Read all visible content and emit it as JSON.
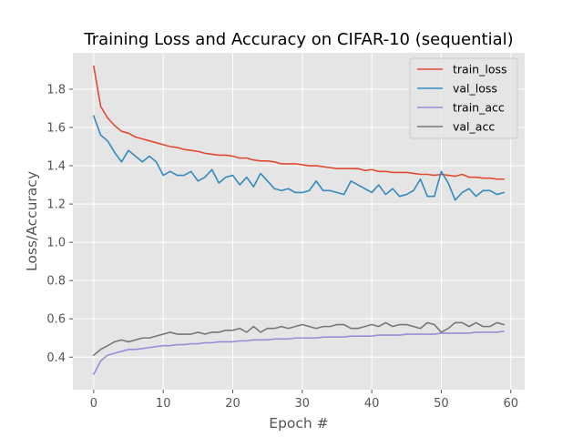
{
  "chart_data": {
    "type": "line",
    "title": "Training Loss and Accuracy on CIFAR-10 (sequential)",
    "xlabel": "Epoch #",
    "ylabel": "Loss/Accuracy",
    "xlim": [
      -3,
      62
    ],
    "ylim": [
      0.23,
      1.99
    ],
    "xticks": [
      0,
      10,
      20,
      30,
      40,
      50,
      60
    ],
    "yticks": [
      0.4,
      0.6,
      0.8,
      1.0,
      1.2,
      1.4,
      1.6,
      1.8
    ],
    "ytick_labels": [
      "0.4",
      "0.6",
      "0.8",
      "1.0",
      "1.2",
      "1.4",
      "1.6",
      "1.8"
    ],
    "grid": true,
    "legend_position": "top-right",
    "style": "ggplot",
    "x": [
      0,
      1,
      2,
      3,
      4,
      5,
      6,
      7,
      8,
      9,
      10,
      11,
      12,
      13,
      14,
      15,
      16,
      17,
      18,
      19,
      20,
      21,
      22,
      23,
      24,
      25,
      26,
      27,
      28,
      29,
      30,
      31,
      32,
      33,
      34,
      35,
      36,
      37,
      38,
      39,
      40,
      41,
      42,
      43,
      44,
      45,
      46,
      47,
      48,
      49,
      50,
      51,
      52,
      53,
      54,
      55,
      56,
      57,
      58,
      59
    ],
    "series": [
      {
        "name": "train_loss",
        "color": "#e24a33",
        "values": [
          1.92,
          1.71,
          1.65,
          1.61,
          1.58,
          1.57,
          1.55,
          1.54,
          1.53,
          1.52,
          1.51,
          1.5,
          1.495,
          1.485,
          1.48,
          1.475,
          1.465,
          1.46,
          1.455,
          1.455,
          1.45,
          1.44,
          1.44,
          1.43,
          1.425,
          1.425,
          1.42,
          1.41,
          1.41,
          1.41,
          1.405,
          1.4,
          1.4,
          1.395,
          1.39,
          1.385,
          1.385,
          1.385,
          1.385,
          1.375,
          1.38,
          1.37,
          1.37,
          1.365,
          1.365,
          1.365,
          1.36,
          1.355,
          1.355,
          1.35,
          1.355,
          1.35,
          1.345,
          1.355,
          1.34,
          1.34,
          1.335,
          1.335,
          1.33,
          1.33
        ]
      },
      {
        "name": "val_loss",
        "color": "#348abd",
        "values": [
          1.66,
          1.56,
          1.53,
          1.47,
          1.42,
          1.48,
          1.45,
          1.42,
          1.45,
          1.42,
          1.35,
          1.37,
          1.35,
          1.35,
          1.37,
          1.32,
          1.34,
          1.38,
          1.31,
          1.34,
          1.35,
          1.3,
          1.34,
          1.29,
          1.36,
          1.32,
          1.28,
          1.27,
          1.28,
          1.26,
          1.26,
          1.27,
          1.32,
          1.27,
          1.27,
          1.26,
          1.25,
          1.32,
          1.3,
          1.28,
          1.26,
          1.3,
          1.25,
          1.28,
          1.24,
          1.25,
          1.27,
          1.33,
          1.24,
          1.24,
          1.37,
          1.31,
          1.22,
          1.26,
          1.28,
          1.24,
          1.27,
          1.27,
          1.25,
          1.26
        ]
      },
      {
        "name": "train_acc",
        "color": "#988ed5",
        "values": [
          0.31,
          0.38,
          0.41,
          0.42,
          0.43,
          0.44,
          0.44,
          0.445,
          0.45,
          0.455,
          0.46,
          0.46,
          0.465,
          0.465,
          0.47,
          0.47,
          0.475,
          0.475,
          0.48,
          0.48,
          0.48,
          0.485,
          0.485,
          0.49,
          0.49,
          0.49,
          0.495,
          0.495,
          0.495,
          0.5,
          0.5,
          0.5,
          0.5,
          0.505,
          0.505,
          0.505,
          0.505,
          0.51,
          0.51,
          0.51,
          0.51,
          0.515,
          0.515,
          0.515,
          0.515,
          0.52,
          0.52,
          0.52,
          0.52,
          0.52,
          0.525,
          0.525,
          0.525,
          0.525,
          0.525,
          0.53,
          0.53,
          0.53,
          0.53,
          0.535
        ]
      },
      {
        "name": "val_acc",
        "color": "#777777",
        "values": [
          0.41,
          0.44,
          0.46,
          0.48,
          0.49,
          0.48,
          0.49,
          0.5,
          0.5,
          0.51,
          0.52,
          0.53,
          0.52,
          0.52,
          0.52,
          0.53,
          0.52,
          0.53,
          0.53,
          0.54,
          0.54,
          0.55,
          0.53,
          0.56,
          0.53,
          0.55,
          0.55,
          0.56,
          0.55,
          0.56,
          0.57,
          0.56,
          0.55,
          0.56,
          0.56,
          0.57,
          0.57,
          0.55,
          0.55,
          0.56,
          0.57,
          0.56,
          0.58,
          0.56,
          0.57,
          0.57,
          0.56,
          0.55,
          0.58,
          0.57,
          0.53,
          0.55,
          0.58,
          0.58,
          0.56,
          0.58,
          0.56,
          0.56,
          0.58,
          0.57
        ]
      }
    ]
  }
}
